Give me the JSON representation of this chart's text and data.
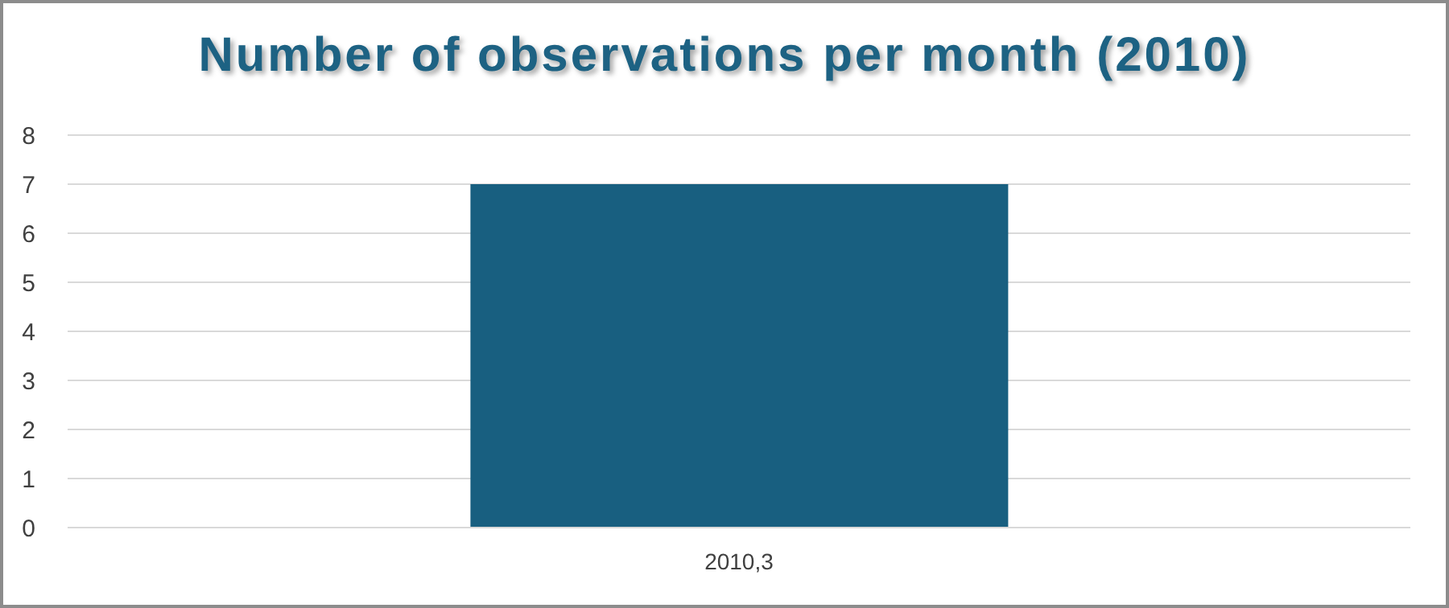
{
  "chart_data": {
    "type": "bar",
    "title": "Number of observations per month (2010)",
    "categories": [
      "2010,3"
    ],
    "values": [
      7
    ],
    "color": "#185f80",
    "ylim": [
      0,
      8
    ],
    "yticks": [
      0,
      1,
      2,
      3,
      4,
      5,
      6,
      7,
      8
    ],
    "grid": "y"
  }
}
